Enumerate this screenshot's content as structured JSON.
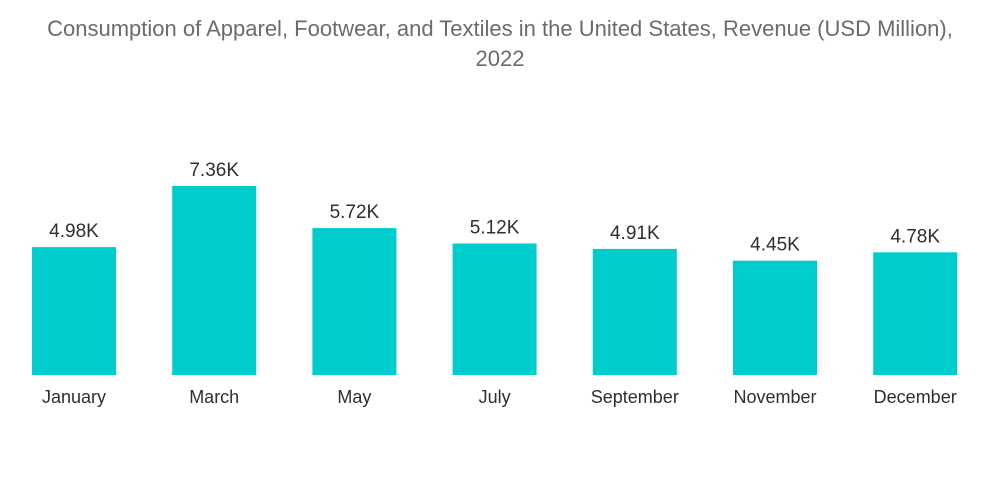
{
  "chart_data": {
    "type": "bar",
    "title_line1": "Consumption of Apparel, Footwear, and Textiles in the United States, Revenue (USD Million),",
    "title_line2": "2022",
    "categories": [
      "January",
      "March",
      "May",
      "July",
      "September",
      "November",
      "December"
    ],
    "values": [
      4.98,
      7.36,
      5.72,
      5.12,
      4.91,
      4.45,
      4.78
    ],
    "value_labels": [
      "4.98K",
      "7.36K",
      "5.72K",
      "5.12K",
      "4.91K",
      "4.45K",
      "4.78K"
    ],
    "xlabel": "",
    "ylabel": "",
    "ylim": [
      0,
      7.36
    ],
    "grid": false,
    "legend": "none",
    "bar_color": "#00cccc"
  }
}
